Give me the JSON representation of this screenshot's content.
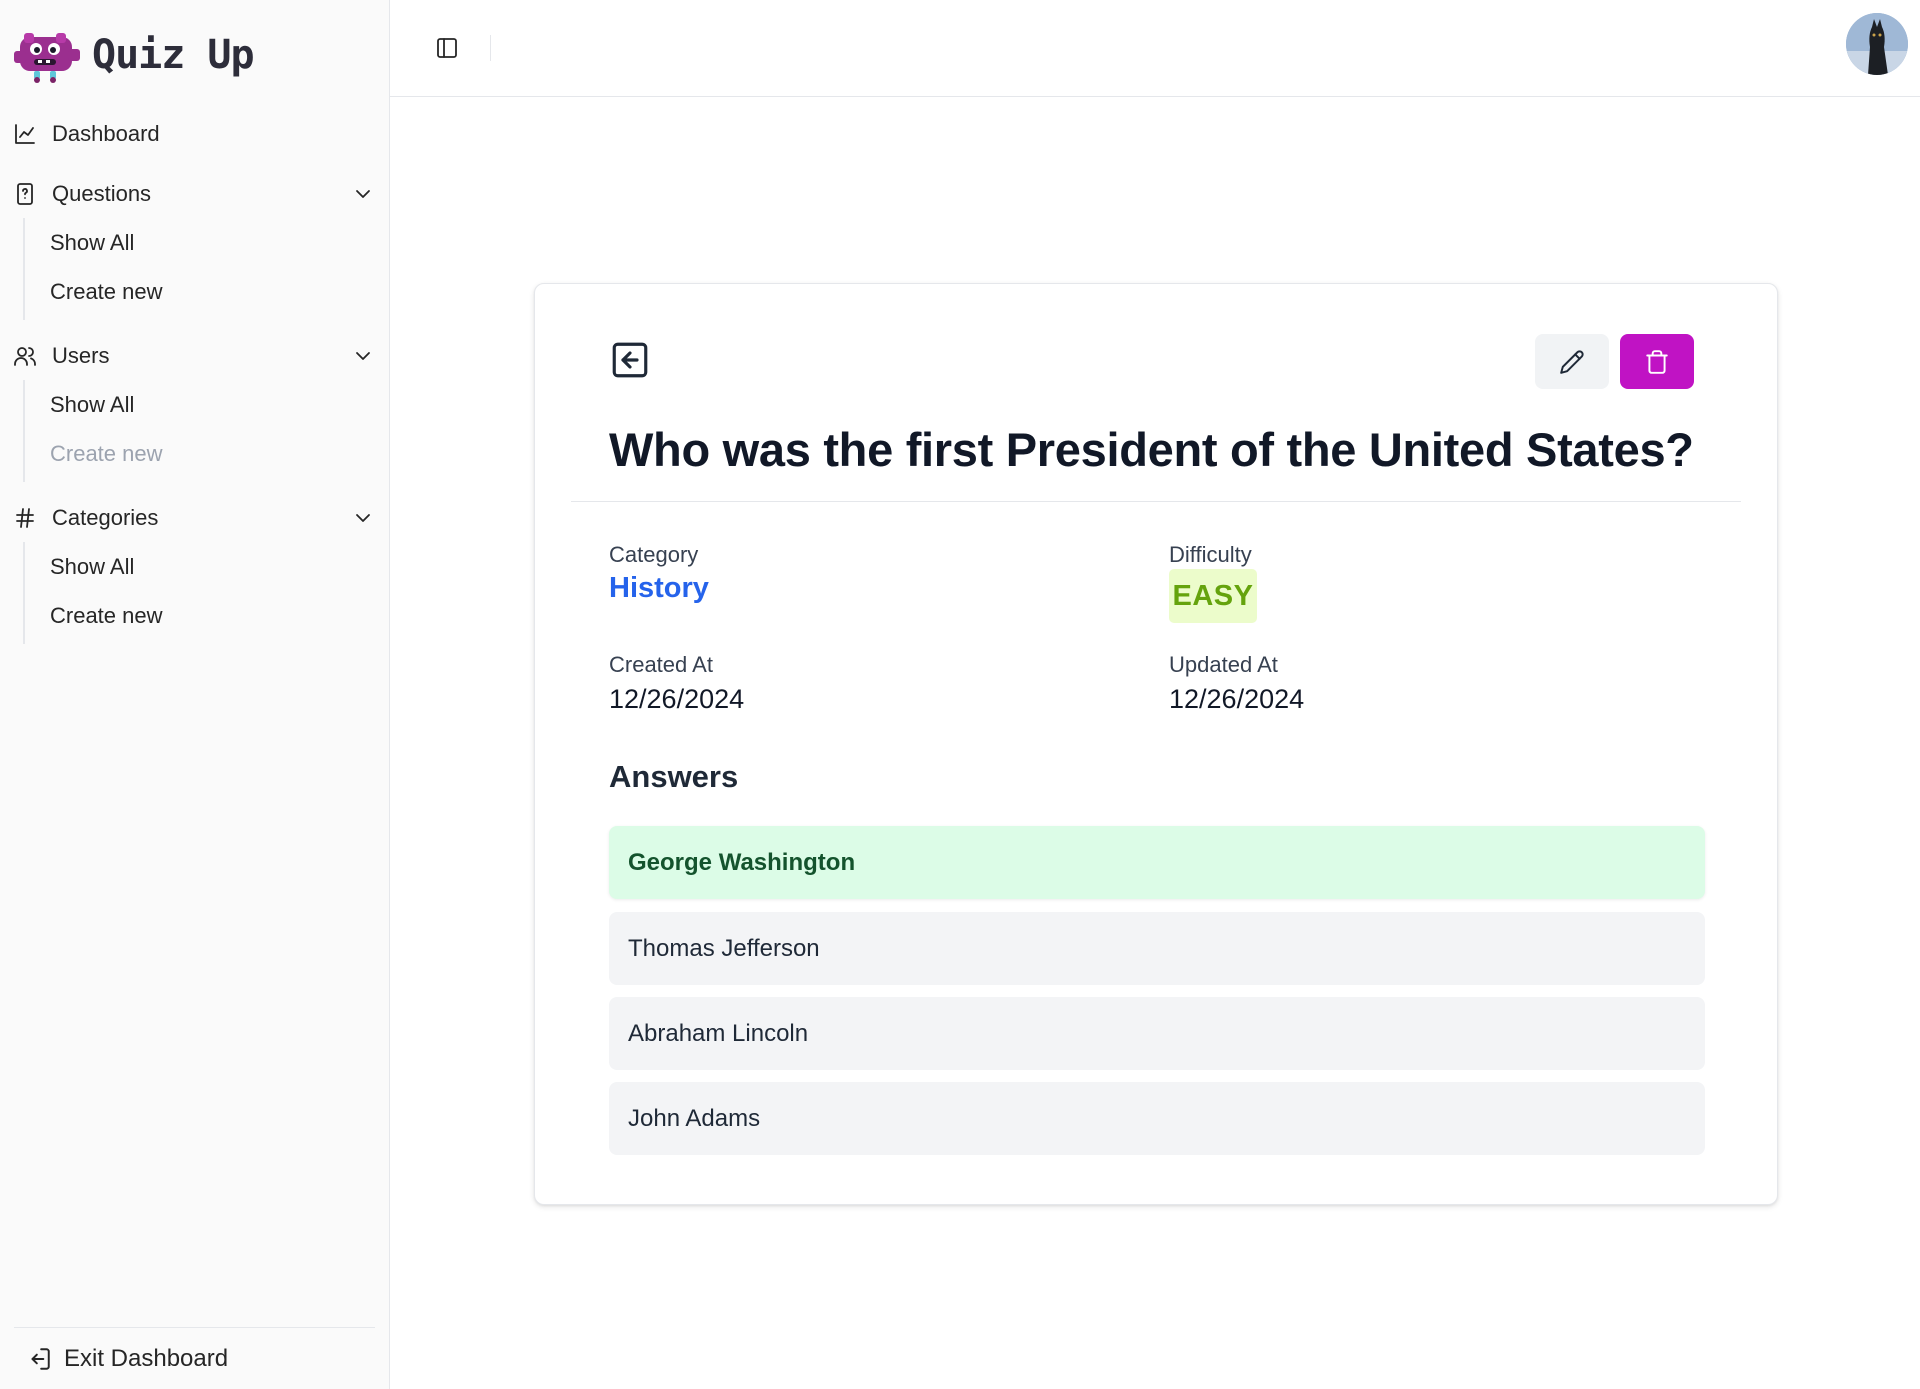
{
  "app": {
    "name": "Quiz Up"
  },
  "sidebar": {
    "dashboard": {
      "label": "Dashboard",
      "icon": "chart-line-icon"
    },
    "groups": [
      {
        "label": "Questions",
        "icon": "file-question-icon",
        "items": [
          {
            "label": "Show All",
            "muted": false
          },
          {
            "label": "Create new",
            "muted": false
          }
        ]
      },
      {
        "label": "Users",
        "icon": "users-icon",
        "items": [
          {
            "label": "Show All",
            "muted": false
          },
          {
            "label": "Create new",
            "muted": true
          }
        ]
      },
      {
        "label": "Categories",
        "icon": "hash-icon",
        "items": [
          {
            "label": "Show All",
            "muted": false
          },
          {
            "label": "Create new",
            "muted": false
          }
        ]
      }
    ],
    "footer": {
      "label": "Exit Dashboard",
      "icon": "log-out-icon"
    }
  },
  "question": {
    "title": "Who was the first President of the United States?",
    "category_label": "Category",
    "category": "History",
    "difficulty_label": "Difficulty",
    "difficulty": "EASY",
    "created_label": "Created At",
    "created": "12/26/2024",
    "updated_label": "Updated At",
    "updated": "12/26/2024",
    "answers_heading": "Answers",
    "answers": [
      {
        "text": "George Washington",
        "correct": true
      },
      {
        "text": "Thomas Jefferson",
        "correct": false
      },
      {
        "text": "Abraham Lincoln",
        "correct": false
      },
      {
        "text": "John Adams",
        "correct": false
      }
    ]
  },
  "colors": {
    "accent_delete": "#c013c4",
    "link": "#2563eb",
    "easy_text": "#65a30d",
    "easy_bg": "#ecfccb",
    "correct_bg": "#dcfce7"
  }
}
